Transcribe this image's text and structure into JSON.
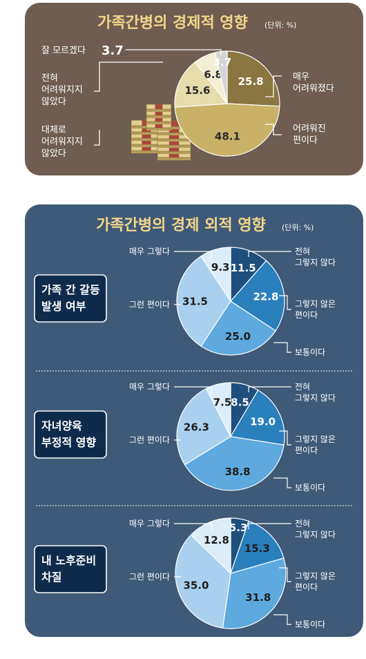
{
  "panel1": {
    "title": "가족간병의 경제적 영향",
    "unit": "(단위: %)",
    "colors": {
      "bg": "#6e5d50",
      "title": "#f3d68c"
    },
    "chart_data": {
      "type": "pie",
      "title": "가족간병의 경제적 영향",
      "unit": "(단위: %)",
      "slices": [
        {
          "label": "매우 어려워졌다",
          "lines": [
            "매우",
            "어려워졌다"
          ],
          "value": 25.8,
          "value_text": "25.8",
          "color": "#8a7640",
          "text_color": "#ffffff"
        },
        {
          "label": "어려워진 편이다",
          "lines": [
            "어려워진",
            "편이다"
          ],
          "value": 48.1,
          "value_text": "48.1",
          "color": "#c9b268",
          "text_color": "#2a2a2a"
        },
        {
          "label": "대체로 어려워지지 않았다",
          "lines": [
            "대체로",
            "어려워지지",
            "않았다"
          ],
          "value": 15.6,
          "value_text": "15.6",
          "color": "#e6dcac",
          "text_color": "#2a2a2a"
        },
        {
          "label": "전혀 어려워지지 않았다",
          "lines": [
            "전혀",
            "어려워지지",
            "않았다"
          ],
          "value": 6.8,
          "value_text": "6.8",
          "color": "#f4eed3",
          "text_color": "#2a2a2a"
        },
        {
          "label": "잘 모르겠다",
          "lines": [
            "잘 모르겠다"
          ],
          "value": 3.7,
          "value_text": "3.7",
          "color": "#d4d4d4",
          "text_color": "#ffffff"
        }
      ]
    }
  },
  "panel2": {
    "title": "가족간병의 경제 외적 영향",
    "unit": "(단위: %)",
    "colors": {
      "bg": "#3f5a78",
      "title": "#f3d68c"
    },
    "legend": {
      "very": "매우 그렇다",
      "some": "그런 편이다",
      "notatall": [
        "전혀",
        "그렇지 않다"
      ],
      "not": [
        "그렇지 않은",
        "편이다"
      ],
      "neutral": "보통이다"
    },
    "chart_data": [
      {
        "type": "pie",
        "category": "가족 간 갈등 발생 여부",
        "label_lines": [
          "가족 간 갈등",
          "발생 여부"
        ],
        "slices": [
          {
            "label": "전혀 그렇지 않다",
            "value": 11.5,
            "value_text": "11.5",
            "color": "#1f4f7c",
            "text_color": "#ffffff"
          },
          {
            "label": "그렇지 않은 편이다",
            "value": 22.8,
            "value_text": "22.8",
            "color": "#2a7fbd",
            "text_color": "#ffffff"
          },
          {
            "label": "보통이다",
            "value": 25.0,
            "value_text": "25.0",
            "color": "#5ea9dd",
            "text_color": "#1d1d1d"
          },
          {
            "label": "그런 편이다",
            "value": 31.5,
            "value_text": "31.5",
            "color": "#a9d1ef",
            "text_color": "#1d1d1d"
          },
          {
            "label": "매우 그렇다",
            "value": 9.3,
            "value_text": "9.3",
            "color": "#dcedf9",
            "text_color": "#1d1d1d"
          }
        ]
      },
      {
        "type": "pie",
        "category": "자녀양육 부정적 영향",
        "label_lines": [
          "자녀양육",
          "부정적 영향"
        ],
        "slices": [
          {
            "label": "전혀 그렇지 않다",
            "value": 8.5,
            "value_text": "8.5",
            "color": "#1f4f7c",
            "text_color": "#ffffff"
          },
          {
            "label": "그렇지 않은 편이다",
            "value": 19.0,
            "value_text": "19.0",
            "color": "#2a7fbd",
            "text_color": "#ffffff"
          },
          {
            "label": "보통이다",
            "value": 38.8,
            "value_text": "38.8",
            "color": "#5ea9dd",
            "text_color": "#1d1d1d"
          },
          {
            "label": "그런 편이다",
            "value": 26.3,
            "value_text": "26.3",
            "color": "#a9d1ef",
            "text_color": "#1d1d1d"
          },
          {
            "label": "매우 그렇다",
            "value": 7.5,
            "value_text": "7.5",
            "color": "#dcedf9",
            "text_color": "#1d1d1d"
          }
        ]
      },
      {
        "type": "pie",
        "category": "내 노후준비 차질",
        "label_lines": [
          "내 노후준비",
          "차질"
        ],
        "slices": [
          {
            "label": "전혀 그렇지 않다",
            "value": 5.3,
            "value_text": "5.3",
            "color": "#1f4f7c",
            "text_color": "#ffffff"
          },
          {
            "label": "그렇지 않은 편이다",
            "value": 15.3,
            "value_text": "15.3",
            "color": "#2a7fbd",
            "text_color": "#1d1d1d"
          },
          {
            "label": "보통이다",
            "value": 31.8,
            "value_text": "31.8",
            "color": "#5ea9dd",
            "text_color": "#1d1d1d"
          },
          {
            "label": "그런 편이다",
            "value": 35.0,
            "value_text": "35.0",
            "color": "#a9d1ef",
            "text_color": "#1d1d1d"
          },
          {
            "label": "매우 그렇다",
            "value": 12.8,
            "value_text": "12.8",
            "color": "#dcedf9",
            "text_color": "#1d1d1d"
          }
        ]
      }
    ]
  },
  "icon": "money-stack-icon"
}
